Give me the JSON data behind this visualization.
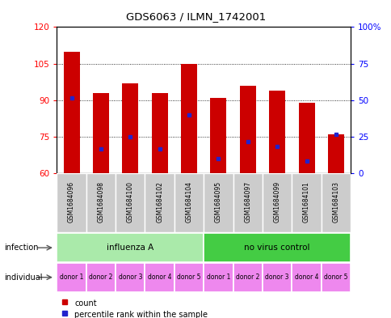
{
  "title": "GDS6063 / ILMN_1742001",
  "samples": [
    "GSM1684096",
    "GSM1684098",
    "GSM1684100",
    "GSM1684102",
    "GSM1684104",
    "GSM1684095",
    "GSM1684097",
    "GSM1684099",
    "GSM1684101",
    "GSM1684103"
  ],
  "bar_heights": [
    110,
    93,
    97,
    93,
    105,
    91,
    96,
    94,
    89,
    76
  ],
  "bar_bottom": 60,
  "percentile_values": [
    91,
    70,
    75,
    70,
    84,
    66,
    73,
    71,
    65,
    76
  ],
  "ylim_left": [
    60,
    120
  ],
  "ylim_right": [
    0,
    100
  ],
  "yticks_left": [
    60,
    75,
    90,
    105,
    120
  ],
  "yticks_right": [
    0,
    25,
    50,
    75,
    100
  ],
  "ytick_labels_right": [
    "0",
    "25",
    "50",
    "75",
    "100%"
  ],
  "bar_color": "#cc0000",
  "percentile_color": "#2222cc",
  "bg_color": "#ffffff",
  "infection_groups": [
    {
      "label": "influenza A",
      "start": 0,
      "end": 5,
      "color": "#aaeaaa"
    },
    {
      "label": "no virus control",
      "start": 5,
      "end": 10,
      "color": "#44cc44"
    }
  ],
  "individual_labels": [
    "donor 1",
    "donor 2",
    "donor 3",
    "donor 4",
    "donor 5",
    "donor 1",
    "donor 2",
    "donor 3",
    "donor 4",
    "donor 5"
  ],
  "individual_color": "#ee88ee",
  "sample_bg_color": "#cccccc",
  "legend_items": [
    {
      "label": "count",
      "color": "#cc0000"
    },
    {
      "label": "percentile rank within the sample",
      "color": "#2222cc"
    }
  ]
}
